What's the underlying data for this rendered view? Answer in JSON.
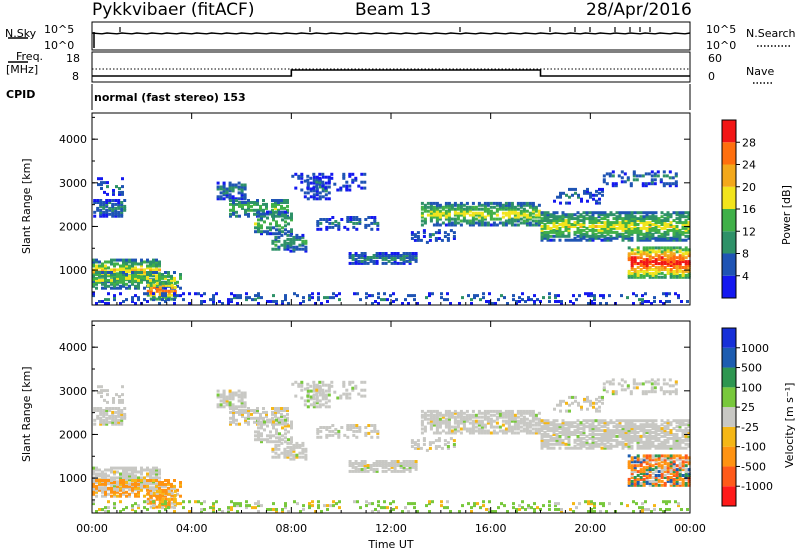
{
  "header": {
    "station": "Pykkvibaer (fitACF)",
    "beam": "Beam 13",
    "date": "28/Apr/2016"
  },
  "panels": {
    "nsky": {
      "label": "N.Sky",
      "tick_top": "10^5",
      "tick_bottom": "10^0",
      "right_label": "N.Search",
      "right_tick_top": "10^5",
      "right_tick_bottom": "10^0"
    },
    "freq": {
      "label_top": "Freq.",
      "label_unit": "[MHz]",
      "tick_top": "18",
      "tick_bottom": "8",
      "right_label": "Nave",
      "right_tick_top": "60",
      "right_tick_bottom": "0"
    },
    "cpid": {
      "label": "CPID",
      "text": "normal (fast stereo) 153"
    }
  },
  "chart_data": [
    {
      "type": "heatmap",
      "name": "power",
      "title": "",
      "xlabel": "",
      "ylabel": "Slant Range [km]",
      "x_ticks": [
        "00:00",
        "04:00",
        "08:00",
        "12:00",
        "16:00",
        "20:00",
        "00:00"
      ],
      "xlim_hours": [
        0,
        24
      ],
      "y_ticks": [
        "1000",
        "2000",
        "3000",
        "4000"
      ],
      "ylim": [
        200,
        4600
      ],
      "colorbar": {
        "label": "Power [dB]",
        "ticks": [
          "4",
          "8",
          "12",
          "16",
          "20",
          "24",
          "28"
        ],
        "range": [
          0,
          32
        ],
        "colors": [
          "#1418f0",
          "#1f54b4",
          "#2e9168",
          "#40b048",
          "#f2e41c",
          "#f3a81b",
          "#ff6f0e",
          "#f21616"
        ]
      }
    },
    {
      "type": "heatmap",
      "name": "velocity",
      "title": "",
      "xlabel": "Time UT",
      "ylabel": "Slant Range [km]",
      "x_ticks": [
        "00:00",
        "04:00",
        "08:00",
        "12:00",
        "16:00",
        "20:00",
        "00:00"
      ],
      "xlim_hours": [
        0,
        24
      ],
      "y_ticks": [
        "1000",
        "2000",
        "3000",
        "4000"
      ],
      "ylim": [
        200,
        4600
      ],
      "colorbar": {
        "label": "Velocity [m s⁻¹]",
        "ticks": [
          "-1000",
          "-500",
          "-100",
          "-25",
          "25",
          "100",
          "500",
          "1000"
        ],
        "colors": [
          "#ff1a1a",
          "#ff5a1a",
          "#ff9312",
          "#f5b716",
          "#c8c8c4",
          "#78c83c",
          "#2e9650",
          "#1c5cb0",
          "#1730d8"
        ]
      }
    }
  ],
  "bands": [
    {
      "t0": 0.05,
      "t1": 1.3,
      "r0": 2200,
      "r1": 2600,
      "p": 8,
      "v": "gray",
      "d": 0.7
    },
    {
      "t0": 0.2,
      "t1": 1.2,
      "r0": 2700,
      "r1": 3100,
      "p": 6,
      "v": "gray",
      "d": 0.35
    },
    {
      "t0": 0.0,
      "t1": 2.7,
      "r0": 700,
      "r1": 1200,
      "p": 17,
      "v": "gray",
      "d": 0.75
    },
    {
      "t0": 0.0,
      "t1": 3.5,
      "r0": 550,
      "r1": 950,
      "p": 14,
      "v": "orange",
      "d": 0.55
    },
    {
      "t0": 2.2,
      "t1": 3.4,
      "r0": 300,
      "r1": 700,
      "p": 23,
      "v": "orange",
      "d": 0.7
    },
    {
      "t0": 5.0,
      "t1": 6.2,
      "r0": 2600,
      "r1": 3000,
      "p": 8,
      "v": "gray",
      "d": 0.6
    },
    {
      "t0": 5.5,
      "t1": 7.8,
      "r0": 2200,
      "r1": 2600,
      "p": 12,
      "v": "gray",
      "d": 0.6
    },
    {
      "t0": 6.5,
      "t1": 8.0,
      "r0": 1800,
      "r1": 2300,
      "p": 12,
      "v": "gray",
      "d": 0.55
    },
    {
      "t0": 7.2,
      "t1": 8.6,
      "r0": 1400,
      "r1": 1800,
      "p": 10,
      "v": "gray",
      "d": 0.55
    },
    {
      "t0": 8.5,
      "t1": 9.5,
      "r0": 2600,
      "r1": 3100,
      "p": 6,
      "v": "gray",
      "d": 0.4
    },
    {
      "t0": 9.0,
      "t1": 11.5,
      "r0": 1900,
      "r1": 2200,
      "p": 7,
      "v": "gray",
      "d": 0.4
    },
    {
      "t0": 8.0,
      "t1": 11.0,
      "r0": 2800,
      "r1": 3200,
      "p": 5,
      "v": "gray",
      "d": 0.25
    },
    {
      "t0": 10.3,
      "t1": 13.0,
      "r0": 1120,
      "r1": 1350,
      "p": 8,
      "v": "gray",
      "d": 0.7
    },
    {
      "t0": 13.2,
      "t1": 18.0,
      "r0": 2000,
      "r1": 2500,
      "p": 15,
      "v": "gray",
      "d": 0.7
    },
    {
      "t0": 12.8,
      "t1": 14.5,
      "r0": 1600,
      "r1": 1900,
      "p": 6,
      "v": "gray",
      "d": 0.3
    },
    {
      "t0": 18.0,
      "t1": 23.9,
      "r0": 1650,
      "r1": 2300,
      "p": 15,
      "v": "gray",
      "d": 0.75
    },
    {
      "t0": 20.5,
      "t1": 23.5,
      "r0": 2900,
      "r1": 3250,
      "p": 7,
      "v": "gray",
      "d": 0.4
    },
    {
      "t0": 18.5,
      "t1": 20.5,
      "r0": 2500,
      "r1": 2900,
      "p": 6,
      "v": "gray",
      "d": 0.25
    },
    {
      "t0": 21.5,
      "t1": 24.0,
      "r0": 800,
      "r1": 1500,
      "p": 26,
      "v": "mixed",
      "d": 0.8
    },
    {
      "t0": 0.0,
      "t1": 24.0,
      "r0": 200,
      "r1": 450,
      "p": 6,
      "v": "green",
      "d": 0.22
    }
  ],
  "colors": {
    "line": "#000000",
    "dotted": "#000000"
  }
}
